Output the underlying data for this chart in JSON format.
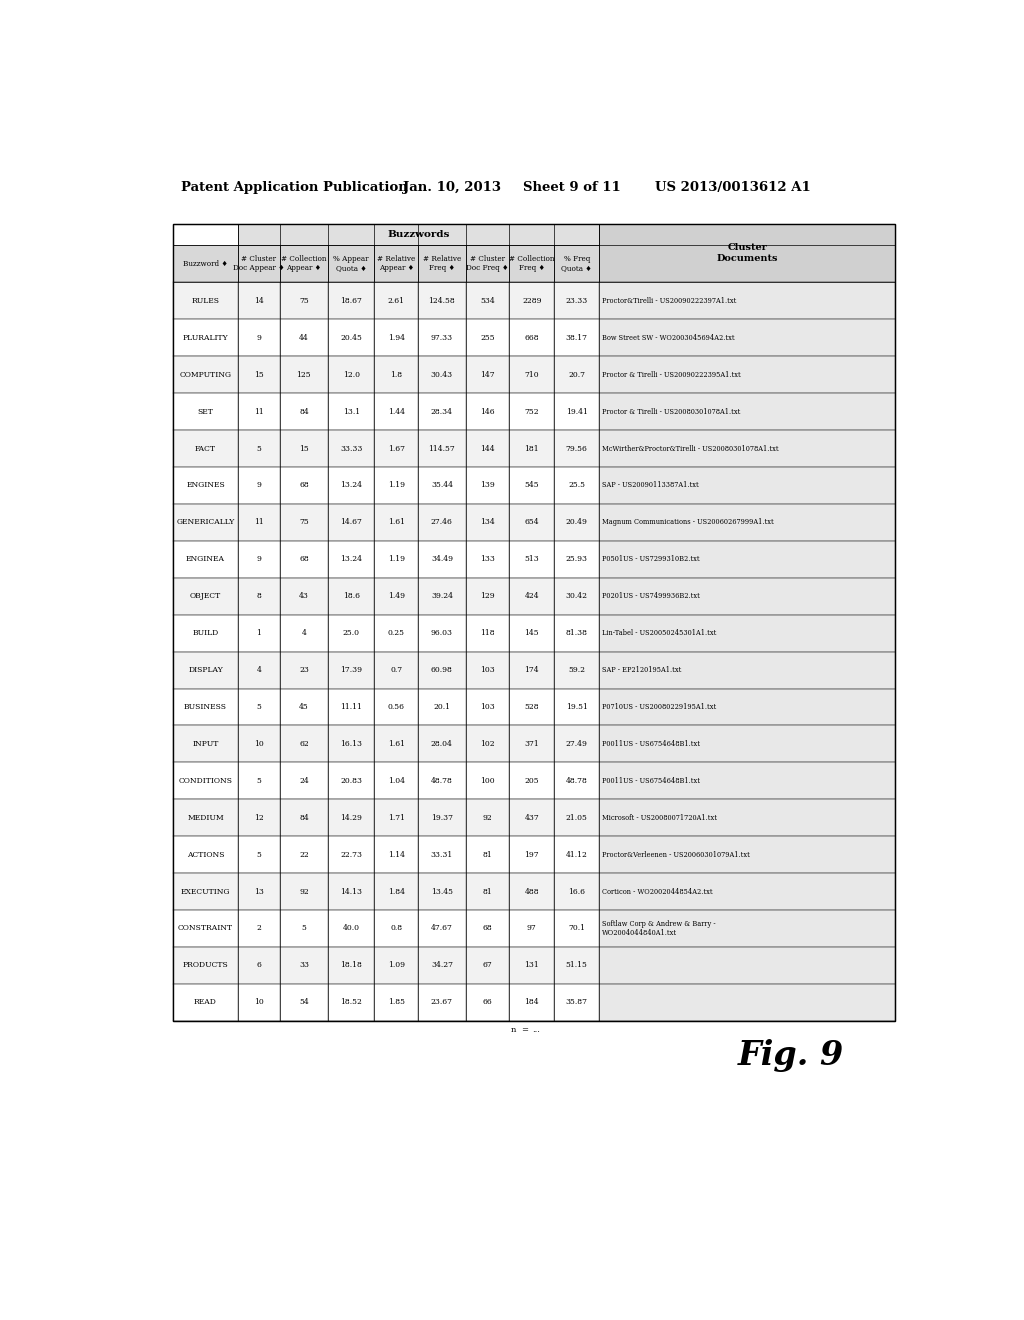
{
  "header_line1": "Patent Application Publication",
  "header_date": "Jan. 10, 2013",
  "header_sheet": "Sheet 9 of 11",
  "header_patent": "US 2013/0013612 A1",
  "fig_label": "Fig. 9",
  "buzzword_section_title": "Buzzwords",
  "cluster_section_title": "Cluster\nDocuments",
  "col_header_labels": [
    "Buzzword ♦",
    "# Cluster\nDoc Appear ♦",
    "# Collection\nAppear ♦",
    "% Appear\nQuota ♦",
    "# Relative\nAppear ♦",
    "# Relative\nFreq ♦",
    "# Cluster\nDoc Freq ♦",
    "# Collection\nFreq ♦",
    "% Freq\nQuota ♦"
  ],
  "rows": [
    [
      "RULES",
      "14",
      "75",
      "18.67",
      "2.61",
      "124.58",
      "534",
      "2289",
      "23.33",
      "Proctor&Tirelli - US20090222397A1.txt"
    ],
    [
      "PLURALITY",
      "9",
      "44",
      "20.45",
      "1.94",
      "97.33",
      "255",
      "668",
      "38.17",
      "Bow Street SW - WO2003045694A2.txt"
    ],
    [
      "COMPUTING",
      "15",
      "125",
      "12.0",
      "1.8",
      "30.43",
      "147",
      "710",
      "20.7",
      "Proctor & Tirelli - US20090222395A1.txt"
    ],
    [
      "SET",
      "11",
      "84",
      "13.1",
      "1.44",
      "28.34",
      "146",
      "752",
      "19.41",
      "Proctor & Tirelli - US20080301078A1.txt"
    ],
    [
      "FACT",
      "5",
      "15",
      "33.33",
      "1.67",
      "114.57",
      "144",
      "181",
      "79.56",
      "McWirther&Proctor&Tirelli - US20080301078A1.txt"
    ],
    [
      "ENGINES",
      "9",
      "68",
      "13.24",
      "1.19",
      "35.44",
      "139",
      "545",
      "25.5",
      "SAP - US20090113387A1.txt"
    ],
    [
      "GENERICALLY",
      "11",
      "75",
      "14.67",
      "1.61",
      "27.46",
      "134",
      "654",
      "20.49",
      "Magnum Communications - US20060267999A1.txt"
    ],
    [
      "ENGINEA",
      "9",
      "68",
      "13.24",
      "1.19",
      "34.49",
      "133",
      "513",
      "25.93",
      "P0501US - US7299310B2.txt"
    ],
    [
      "OBJECT",
      "8",
      "43",
      "18.6",
      "1.49",
      "39.24",
      "129",
      "424",
      "30.42",
      "P0201US - US7499936B2.txt"
    ],
    [
      "BUILD",
      "1",
      "4",
      "25.0",
      "0.25",
      "96.03",
      "118",
      "145",
      "81.38",
      "Lin-Tabel - US20050245301A1.txt"
    ],
    [
      "DISPLAY",
      "4",
      "23",
      "17.39",
      "0.7",
      "60.98",
      "103",
      "174",
      "59.2",
      "SAP - EP2120195A1.txt"
    ],
    [
      "BUSINESS",
      "5",
      "45",
      "11.11",
      "0.56",
      "20.1",
      "103",
      "528",
      "19.51",
      "P0710US - US20080229195A1.txt"
    ],
    [
      "INPUT",
      "10",
      "62",
      "16.13",
      "1.61",
      "28.04",
      "102",
      "371",
      "27.49",
      "P0011US - US6754648B1.txt"
    ],
    [
      "CONDITIONS",
      "5",
      "24",
      "20.83",
      "1.04",
      "48.78",
      "100",
      "205",
      "48.78",
      "P0011US - US6754648B1.txt"
    ],
    [
      "MEDIUM",
      "12",
      "84",
      "14.29",
      "1.71",
      "19.37",
      "92",
      "437",
      "21.05",
      "Microsoft - US20080071720A1.txt"
    ],
    [
      "ACTIONS",
      "5",
      "22",
      "22.73",
      "1.14",
      "33.31",
      "81",
      "197",
      "41.12",
      "Proctor&Verleenen - US20060301079A1.txt"
    ],
    [
      "EXECUTING",
      "13",
      "92",
      "14.13",
      "1.84",
      "13.45",
      "81",
      "488",
      "16.6",
      "Corticon - WO2002044854A2.txt"
    ],
    [
      "CONSTRAINT",
      "2",
      "5",
      "40.0",
      "0.8",
      "47.67",
      "68",
      "97",
      "70.1",
      "Softlaw Corp & Andrew & Barry -\nWO2004044840A1.txt"
    ],
    [
      "PRODUCTS",
      "6",
      "33",
      "18.18",
      "1.09",
      "34.27",
      "67",
      "131",
      "51.15",
      ""
    ],
    [
      "READ",
      "10",
      "54",
      "18.52",
      "1.85",
      "23.67",
      "66",
      "184",
      "35.87",
      ""
    ]
  ],
  "background_color": "#ffffff"
}
